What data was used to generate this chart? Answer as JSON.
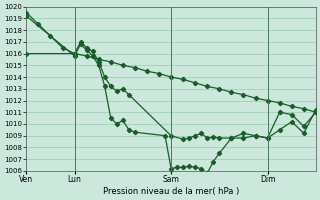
{
  "bg_color": "#cce8dc",
  "grid_color": "#99ccb3",
  "line_color": "#1a5c2a",
  "xlabel": "Pression niveau de la mer( hPa )",
  "ylim": [
    1006,
    1020
  ],
  "yticks": [
    1006,
    1007,
    1008,
    1009,
    1010,
    1011,
    1012,
    1013,
    1014,
    1015,
    1016,
    1017,
    1018,
    1019,
    1020
  ],
  "xlim": [
    0,
    96
  ],
  "xtick_positions": [
    0,
    16,
    48,
    80
  ],
  "xtick_labels": [
    "Ven",
    "Lun",
    "Sam",
    "Dim"
  ],
  "vline_positions": [
    16,
    48,
    80
  ],
  "series1_x": [
    0,
    4,
    8,
    12,
    16,
    20,
    24,
    28,
    32,
    36,
    40,
    44,
    48,
    52,
    56,
    60,
    64,
    68,
    72,
    76,
    80,
    84,
    88,
    92,
    96
  ],
  "series1_y": [
    1019.5,
    1018.5,
    1017.5,
    1016.5,
    1016.0,
    1015.8,
    1015.5,
    1015.3,
    1015.0,
    1014.8,
    1014.5,
    1014.3,
    1014.0,
    1013.8,
    1013.5,
    1013.2,
    1013.0,
    1012.7,
    1012.5,
    1012.2,
    1012.0,
    1011.8,
    1011.5,
    1011.3,
    1011.0
  ],
  "series2_x": [
    0,
    16,
    18,
    20,
    22,
    24,
    26,
    28,
    30,
    32,
    34,
    48,
    52,
    54,
    56,
    58,
    60,
    62,
    64,
    68,
    72,
    76,
    80,
    84,
    88,
    92,
    96
  ],
  "series2_y": [
    1016.0,
    1016.0,
    1017.0,
    1016.5,
    1016.2,
    1015.3,
    1014.0,
    1013.2,
    1012.8,
    1013.0,
    1012.5,
    1009.0,
    1008.7,
    1008.8,
    1009.0,
    1009.2,
    1008.8,
    1008.9,
    1008.8,
    1008.8,
    1008.8,
    1009.0,
    1008.8,
    1009.5,
    1010.2,
    1009.2,
    1011.2
  ],
  "series3_x": [
    0,
    16,
    18,
    20,
    22,
    24,
    26,
    28,
    30,
    32,
    34,
    36,
    46,
    48,
    50,
    52,
    54,
    56,
    58,
    60,
    62,
    64,
    68,
    72,
    76,
    80,
    84,
    88,
    92,
    96
  ],
  "series3_y": [
    1019.2,
    1015.8,
    1016.8,
    1016.3,
    1015.8,
    1015.0,
    1013.2,
    1010.5,
    1010.0,
    1010.3,
    1009.5,
    1009.3,
    1009.0,
    1006.2,
    1006.3,
    1006.3,
    1006.4,
    1006.3,
    1006.2,
    1005.8,
    1006.8,
    1007.5,
    1008.8,
    1009.2,
    1009.0,
    1008.8,
    1011.0,
    1010.8,
    1009.8,
    1011.0
  ]
}
